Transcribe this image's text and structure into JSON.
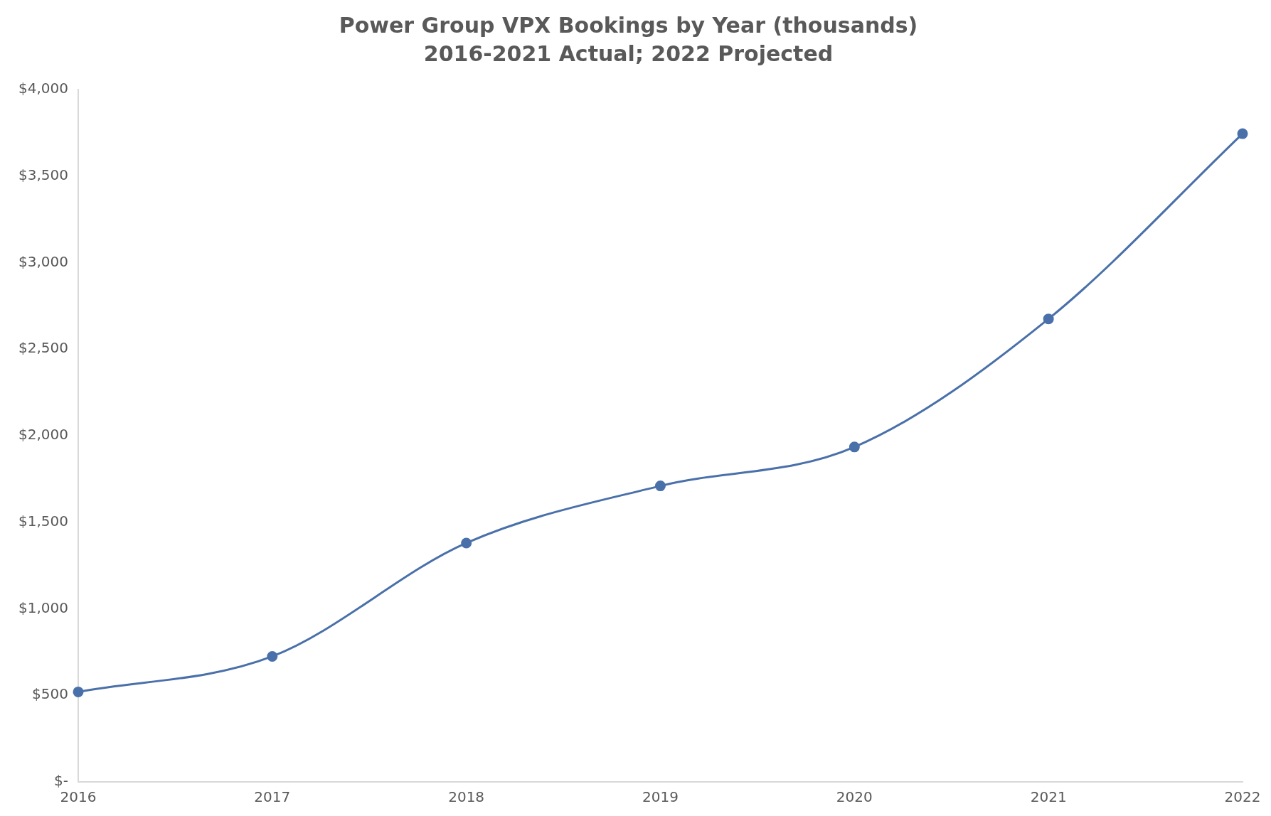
{
  "chart_data": {
    "type": "line",
    "title": "Power Group VPX Bookings by Year (thousands)",
    "subtitle": "2016-2021 Actual; 2022 Projected",
    "categories": [
      "2016",
      "2017",
      "2018",
      "2019",
      "2020",
      "2021",
      "2022"
    ],
    "series": [
      {
        "color": "#4a70aa",
        "values": [
          520,
          725,
          1380,
          1710,
          1935,
          2675,
          3745
        ]
      }
    ],
    "ylim": [
      0,
      4000
    ],
    "yticks": [
      {
        "value": 0,
        "label": "$-"
      },
      {
        "value": 500,
        "label": "$500"
      },
      {
        "value": 1000,
        "label": "$1,000"
      },
      {
        "value": 1500,
        "label": "$1,500"
      },
      {
        "value": 2000,
        "label": "$2,000"
      },
      {
        "value": 2500,
        "label": "$2,500"
      },
      {
        "value": 3000,
        "label": "$3,000"
      },
      {
        "value": 3500,
        "label": "$3,500"
      },
      {
        "value": 4000,
        "label": "$4,000"
      }
    ],
    "grid": false,
    "legend": false,
    "marker": "circle",
    "line_style": "solid"
  }
}
